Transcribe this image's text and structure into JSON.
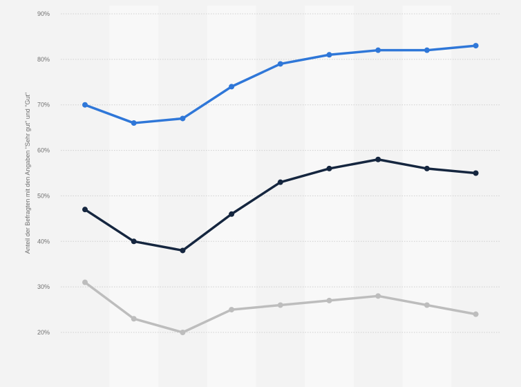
{
  "chart_data": {
    "type": "line",
    "title": "",
    "xlabel": "",
    "ylabel": "Anteil der Befragten mit den Angaben \"Sehr gut\" und \"Gut\"",
    "x": [
      1,
      2,
      3,
      4,
      5,
      6,
      7,
      8,
      9
    ],
    "ylim": [
      20,
      90
    ],
    "yticks": [
      20,
      30,
      40,
      50,
      60,
      70,
      80,
      90
    ],
    "ytick_labels": [
      "20%",
      "30%",
      "40%",
      "50%",
      "60%",
      "70%",
      "80%",
      "90%"
    ],
    "y_unit": "%",
    "grid": true,
    "legend": "none",
    "series": [
      {
        "color": "#2f77d8",
        "values": [
          70,
          66,
          67,
          74,
          79,
          81,
          82,
          82,
          83
        ]
      },
      {
        "color": "#15263f",
        "values": [
          47,
          40,
          38,
          46,
          53,
          56,
          58,
          56,
          55
        ]
      },
      {
        "color": "#bdbdbd",
        "values": [
          31,
          23,
          20,
          25,
          26,
          27,
          28,
          26,
          24
        ]
      }
    ]
  }
}
